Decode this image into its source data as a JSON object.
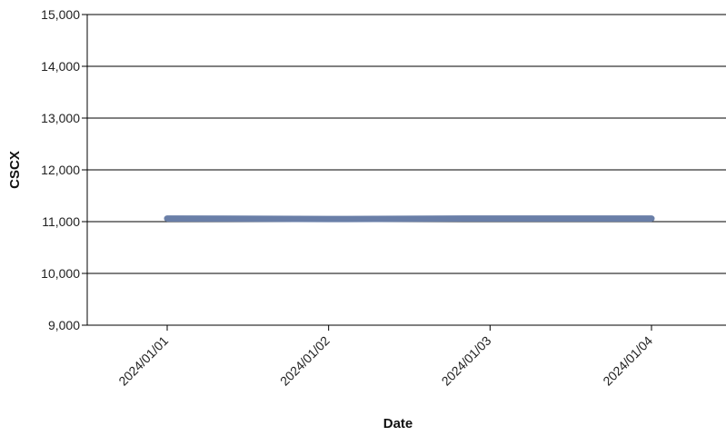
{
  "chart_data": {
    "type": "line",
    "xlabel": "Date",
    "ylabel": "CSCX",
    "categories": [
      "2024/01/01",
      "2024/01/02",
      "2024/01/03",
      "2024/01/04"
    ],
    "series": [
      {
        "values": [
          11060,
          11050,
          11060,
          11060
        ],
        "color": "#6a7fa8"
      }
    ],
    "ylim": [
      9000,
      15000
    ],
    "yticks": [
      9000,
      10000,
      11000,
      12000,
      13000,
      14000,
      15000
    ],
    "ytick_labels": [
      "9,000",
      "10,000",
      "11,000",
      "12,000",
      "13,000",
      "14,000",
      "15,000"
    ],
    "grid": "horizontal",
    "legend": "none"
  }
}
